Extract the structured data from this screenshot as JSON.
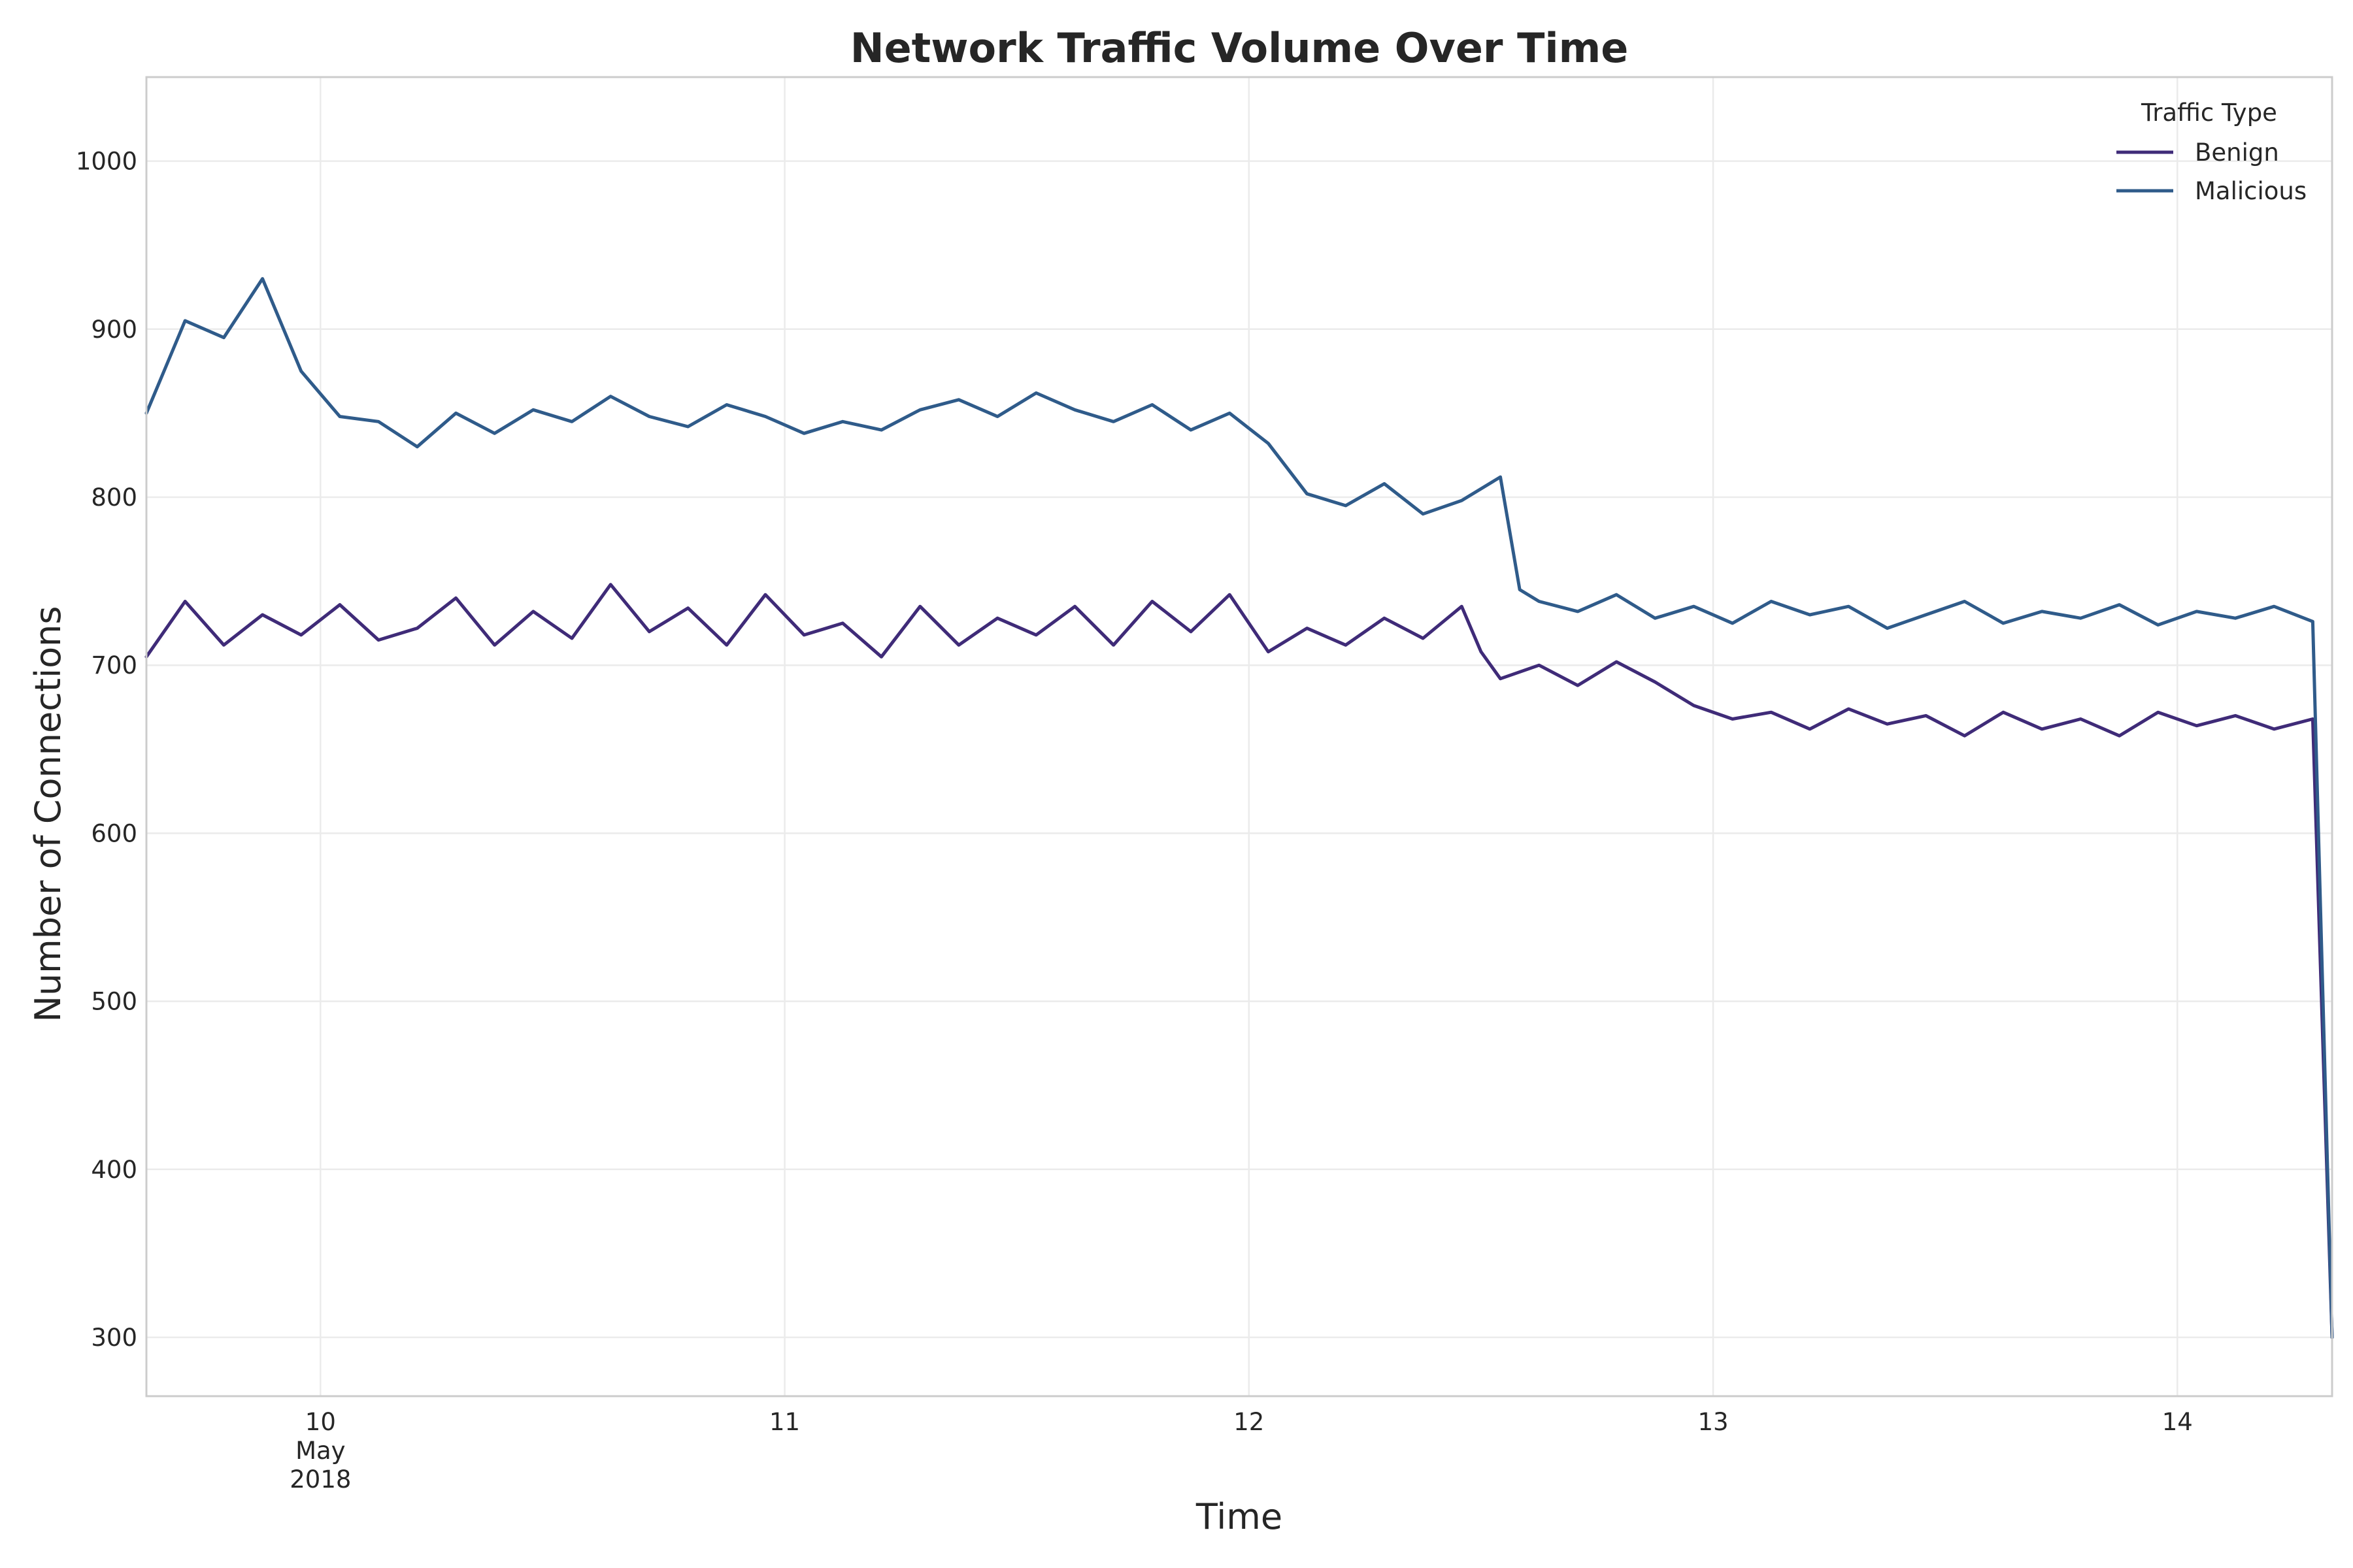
{
  "chart_data": {
    "type": "line",
    "title": "Network Traffic Volume Over Time",
    "xlabel": "Time",
    "ylabel": "Number of Connections",
    "x_range": [
      "2018-05-09T15:00",
      "2018-05-14T08:00"
    ],
    "ylim": [
      265,
      1050
    ],
    "y_ticks": [
      300,
      400,
      500,
      600,
      700,
      800,
      900,
      1000
    ],
    "x_ticks": [
      {
        "date": "2018-05-10",
        "lines": [
          "10",
          "May",
          "2018"
        ]
      },
      {
        "date": "2018-05-11",
        "lines": [
          "11"
        ]
      },
      {
        "date": "2018-05-12",
        "lines": [
          "12"
        ]
      },
      {
        "date": "2018-05-13",
        "lines": [
          "13"
        ]
      },
      {
        "date": "2018-05-14",
        "lines": [
          "14"
        ]
      }
    ],
    "grid": true,
    "legend": {
      "title": "Traffic Type",
      "placement": "top-right"
    },
    "series": [
      {
        "name": "Benign",
        "color": "#3f2b78",
        "points": [
          [
            "2018-05-09T15:00",
            705
          ],
          [
            "2018-05-09T17:00",
            738
          ],
          [
            "2018-05-09T19:00",
            712
          ],
          [
            "2018-05-09T21:00",
            730
          ],
          [
            "2018-05-09T23:00",
            718
          ],
          [
            "2018-05-10T01:00",
            736
          ],
          [
            "2018-05-10T03:00",
            715
          ],
          [
            "2018-05-10T05:00",
            722
          ],
          [
            "2018-05-10T07:00",
            740
          ],
          [
            "2018-05-10T09:00",
            712
          ],
          [
            "2018-05-10T11:00",
            732
          ],
          [
            "2018-05-10T13:00",
            716
          ],
          [
            "2018-05-10T15:00",
            748
          ],
          [
            "2018-05-10T17:00",
            720
          ],
          [
            "2018-05-10T19:00",
            734
          ],
          [
            "2018-05-10T21:00",
            712
          ],
          [
            "2018-05-10T23:00",
            742
          ],
          [
            "2018-05-11T01:00",
            718
          ],
          [
            "2018-05-11T03:00",
            725
          ],
          [
            "2018-05-11T05:00",
            705
          ],
          [
            "2018-05-11T07:00",
            735
          ],
          [
            "2018-05-11T09:00",
            712
          ],
          [
            "2018-05-11T11:00",
            728
          ],
          [
            "2018-05-11T13:00",
            718
          ],
          [
            "2018-05-11T15:00",
            735
          ],
          [
            "2018-05-11T17:00",
            712
          ],
          [
            "2018-05-11T19:00",
            738
          ],
          [
            "2018-05-11T21:00",
            720
          ],
          [
            "2018-05-11T23:00",
            742
          ],
          [
            "2018-05-12T01:00",
            708
          ],
          [
            "2018-05-12T03:00",
            722
          ],
          [
            "2018-05-12T05:00",
            712
          ],
          [
            "2018-05-12T07:00",
            728
          ],
          [
            "2018-05-12T09:00",
            716
          ],
          [
            "2018-05-12T11:00",
            735
          ],
          [
            "2018-05-12T12:00",
            708
          ],
          [
            "2018-05-12T13:00",
            692
          ],
          [
            "2018-05-12T15:00",
            700
          ],
          [
            "2018-05-12T17:00",
            688
          ],
          [
            "2018-05-12T19:00",
            702
          ],
          [
            "2018-05-12T21:00",
            690
          ],
          [
            "2018-05-12T23:00",
            676
          ],
          [
            "2018-05-13T01:00",
            668
          ],
          [
            "2018-05-13T03:00",
            672
          ],
          [
            "2018-05-13T05:00",
            662
          ],
          [
            "2018-05-13T07:00",
            674
          ],
          [
            "2018-05-13T09:00",
            665
          ],
          [
            "2018-05-13T11:00",
            670
          ],
          [
            "2018-05-13T13:00",
            658
          ],
          [
            "2018-05-13T15:00",
            672
          ],
          [
            "2018-05-13T17:00",
            662
          ],
          [
            "2018-05-13T19:00",
            668
          ],
          [
            "2018-05-13T21:00",
            658
          ],
          [
            "2018-05-13T23:00",
            672
          ],
          [
            "2018-05-14T01:00",
            664
          ],
          [
            "2018-05-14T03:00",
            670
          ],
          [
            "2018-05-14T05:00",
            662
          ],
          [
            "2018-05-14T07:00",
            668
          ],
          [
            "2018-05-14T08:00",
            300
          ]
        ]
      },
      {
        "name": "Malicious",
        "color": "#2f5b8a",
        "points": [
          [
            "2018-05-09T15:00",
            850
          ],
          [
            "2018-05-09T17:00",
            905
          ],
          [
            "2018-05-09T19:00",
            895
          ],
          [
            "2018-05-09T21:00",
            930
          ],
          [
            "2018-05-09T23:00",
            875
          ],
          [
            "2018-05-10T01:00",
            848
          ],
          [
            "2018-05-10T03:00",
            845
          ],
          [
            "2018-05-10T05:00",
            830
          ],
          [
            "2018-05-10T07:00",
            850
          ],
          [
            "2018-05-10T09:00",
            838
          ],
          [
            "2018-05-10T11:00",
            852
          ],
          [
            "2018-05-10T13:00",
            845
          ],
          [
            "2018-05-10T15:00",
            860
          ],
          [
            "2018-05-10T17:00",
            848
          ],
          [
            "2018-05-10T19:00",
            842
          ],
          [
            "2018-05-10T21:00",
            855
          ],
          [
            "2018-05-10T23:00",
            848
          ],
          [
            "2018-05-11T01:00",
            838
          ],
          [
            "2018-05-11T03:00",
            845
          ],
          [
            "2018-05-11T05:00",
            840
          ],
          [
            "2018-05-11T07:00",
            852
          ],
          [
            "2018-05-11T09:00",
            858
          ],
          [
            "2018-05-11T11:00",
            848
          ],
          [
            "2018-05-11T13:00",
            862
          ],
          [
            "2018-05-11T15:00",
            852
          ],
          [
            "2018-05-11T17:00",
            845
          ],
          [
            "2018-05-11T19:00",
            855
          ],
          [
            "2018-05-11T21:00",
            840
          ],
          [
            "2018-05-11T23:00",
            850
          ],
          [
            "2018-05-12T01:00",
            832
          ],
          [
            "2018-05-12T03:00",
            802
          ],
          [
            "2018-05-12T05:00",
            795
          ],
          [
            "2018-05-12T07:00",
            808
          ],
          [
            "2018-05-12T09:00",
            790
          ],
          [
            "2018-05-12T11:00",
            798
          ],
          [
            "2018-05-12T13:00",
            812
          ],
          [
            "2018-05-12T14:00",
            745
          ],
          [
            "2018-05-12T15:00",
            738
          ],
          [
            "2018-05-12T17:00",
            732
          ],
          [
            "2018-05-12T19:00",
            742
          ],
          [
            "2018-05-12T21:00",
            728
          ],
          [
            "2018-05-12T23:00",
            735
          ],
          [
            "2018-05-13T01:00",
            725
          ],
          [
            "2018-05-13T03:00",
            738
          ],
          [
            "2018-05-13T05:00",
            730
          ],
          [
            "2018-05-13T07:00",
            735
          ],
          [
            "2018-05-13T09:00",
            722
          ],
          [
            "2018-05-13T11:00",
            730
          ],
          [
            "2018-05-13T13:00",
            738
          ],
          [
            "2018-05-13T15:00",
            725
          ],
          [
            "2018-05-13T17:00",
            732
          ],
          [
            "2018-05-13T19:00",
            728
          ],
          [
            "2018-05-13T21:00",
            736
          ],
          [
            "2018-05-13T23:00",
            724
          ],
          [
            "2018-05-14T01:00",
            732
          ],
          [
            "2018-05-14T03:00",
            728
          ],
          [
            "2018-05-14T05:00",
            735
          ],
          [
            "2018-05-14T07:00",
            726
          ],
          [
            "2018-05-14T08:00",
            300
          ]
        ]
      }
    ]
  }
}
